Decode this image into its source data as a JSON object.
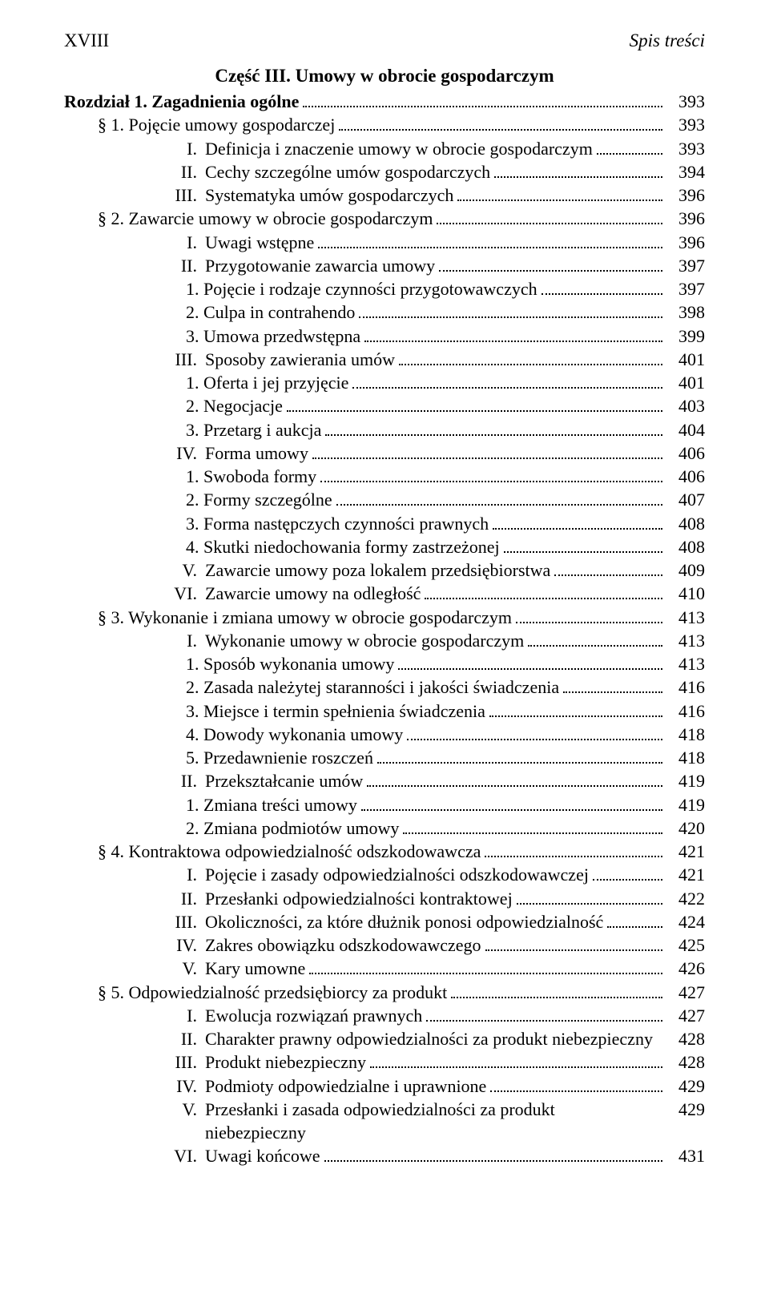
{
  "header": {
    "page_numeral": "XVIII",
    "title": "Spis treści"
  },
  "part_title": "Część III. Umowy w obrocie gospodarczym",
  "entries": [
    {
      "level": 0,
      "bold": true,
      "text": "Rozdział 1. Zagadnienia ogólne",
      "page": "393"
    },
    {
      "level": 1,
      "text": "§ 1. Pojęcie umowy gospodarczej",
      "page": "393"
    },
    {
      "level": 2,
      "roman": "I.",
      "text": "Definicja i znaczenie umowy w obrocie gospodarczym",
      "page": "393"
    },
    {
      "level": 2,
      "roman": "II.",
      "text": "Cechy szczególne umów gospodarczych",
      "page": "394"
    },
    {
      "level": 2,
      "roman": "III.",
      "text": "Systematyka umów gospodarczych",
      "page": "396"
    },
    {
      "level": 1,
      "text": "§ 2. Zawarcie umowy w obrocie gospodarczym",
      "page": "396"
    },
    {
      "level": 2,
      "roman": "I.",
      "text": "Uwagi wstępne",
      "page": "396"
    },
    {
      "level": 2,
      "roman": "II.",
      "text": "Przygotowanie zawarcia umowy",
      "page": "397"
    },
    {
      "level": 3,
      "text": "1. Pojęcie i rodzaje czynności przygotowawczych",
      "page": "397"
    },
    {
      "level": 3,
      "italic_part": "Culpa in contrahendo",
      "prefix": "2. ",
      "page": "398"
    },
    {
      "level": 3,
      "text": "3. Umowa przedwstępna",
      "page": "399"
    },
    {
      "level": 2,
      "roman": "III.",
      "text": "Sposoby zawierania umów",
      "page": "401"
    },
    {
      "level": 3,
      "text": "1. Oferta i jej przyjęcie",
      "page": "401"
    },
    {
      "level": 3,
      "text": "2. Negocjacje",
      "page": "403"
    },
    {
      "level": 3,
      "text": "3. Przetarg i aukcja",
      "page": "404"
    },
    {
      "level": 2,
      "roman": "IV.",
      "text": "Forma umowy",
      "page": "406"
    },
    {
      "level": 3,
      "text": "1. Swoboda formy",
      "page": "406"
    },
    {
      "level": 3,
      "text": "2. Formy szczególne",
      "page": "407"
    },
    {
      "level": 3,
      "text": "3. Forma następczych czynności prawnych",
      "page": "408"
    },
    {
      "level": 3,
      "text": "4. Skutki niedochowania formy zastrzeżonej",
      "page": "408"
    },
    {
      "level": 2,
      "roman": "V.",
      "text": "Zawarcie umowy poza lokalem przedsiębiorstwa",
      "page": "409"
    },
    {
      "level": 2,
      "roman": "VI.",
      "text": "Zawarcie umowy na odległość",
      "page": "410"
    },
    {
      "level": 1,
      "text": "§ 3. Wykonanie i zmiana umowy w obrocie gospodarczym",
      "page": "413"
    },
    {
      "level": 2,
      "roman": "I.",
      "text": "Wykonanie umowy w obrocie gospodarczym",
      "page": "413"
    },
    {
      "level": 3,
      "text": "1. Sposób wykonania umowy",
      "page": "413"
    },
    {
      "level": 3,
      "text": "2. Zasada należytej staranności i jakości świadczenia",
      "page": "416"
    },
    {
      "level": 3,
      "text": "3. Miejsce i termin spełnienia świadczenia",
      "page": "416"
    },
    {
      "level": 3,
      "text": "4. Dowody wykonania umowy",
      "page": "418"
    },
    {
      "level": 3,
      "text": "5. Przedawnienie roszczeń",
      "page": "418"
    },
    {
      "level": 2,
      "roman": "II.",
      "text": "Przekształcanie umów",
      "page": "419"
    },
    {
      "level": 3,
      "text": "1. Zmiana treści umowy",
      "page": "419"
    },
    {
      "level": 3,
      "text": "2. Zmiana podmiotów umowy",
      "page": "420"
    },
    {
      "level": 1,
      "text": "§ 4. Kontraktowa odpowiedzialność odszkodowawcza",
      "page": "421"
    },
    {
      "level": 2,
      "roman": "I.",
      "text": "Pojęcie i zasady odpowiedzialności odszkodowawczej",
      "page": "421"
    },
    {
      "level": 2,
      "roman": "II.",
      "text": "Przesłanki odpowiedzialności kontraktowej",
      "page": "422"
    },
    {
      "level": 2,
      "roman": "III.",
      "text": "Okoliczności, za które dłużnik ponosi odpowiedzialność",
      "page": "424"
    },
    {
      "level": 2,
      "roman": "IV.",
      "text": "Zakres obowiązku odszkodowawczego",
      "page": "425"
    },
    {
      "level": 2,
      "roman": "V.",
      "text": "Kary umowne",
      "page": "426"
    },
    {
      "level": 1,
      "text": "§ 5. Odpowiedzialność przedsiębiorcy za produkt",
      "page": "427"
    },
    {
      "level": 2,
      "roman": "I.",
      "text": "Ewolucja rozwiązań prawnych",
      "page": "427"
    },
    {
      "level": 2,
      "roman": "II.",
      "text": "Charakter prawny odpowiedzialności za produkt niebezpieczny",
      "page": "428",
      "nodots": true
    },
    {
      "level": 2,
      "roman": "III.",
      "text": "Produkt niebezpieczny",
      "page": "428"
    },
    {
      "level": 2,
      "roman": "IV.",
      "text": "Podmioty odpowiedzialne i uprawnione",
      "page": "429"
    },
    {
      "level": 2,
      "roman": "V.",
      "text": "Przesłanki i zasada odpowiedzialności za produkt niebezpieczny",
      "page": "429",
      "nodots": true
    },
    {
      "level": 2,
      "roman": "VI.",
      "text": "Uwagi końcowe",
      "page": "431"
    }
  ]
}
